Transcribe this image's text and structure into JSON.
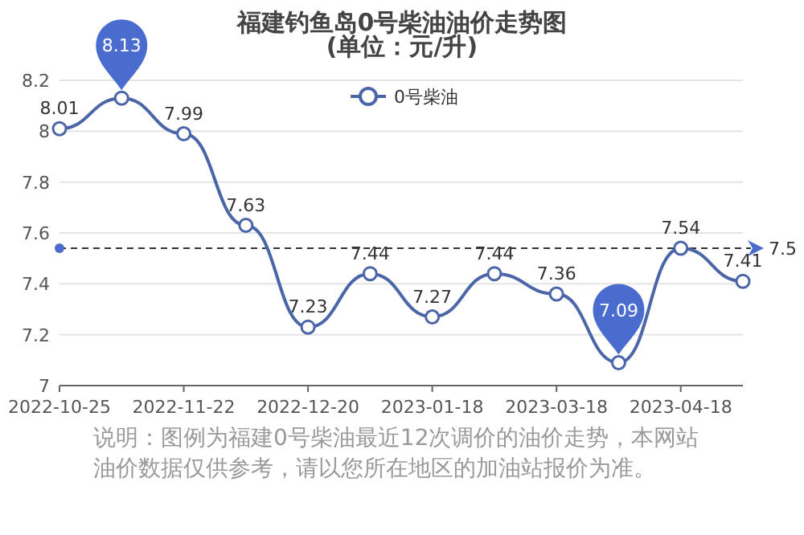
{
  "chart_data": {
    "type": "line",
    "title": "福建钓鱼岛0号柴油油价走势图",
    "subtitle": "(单位：元/升)",
    "categories": [
      "2022-10-25",
      null,
      "2022-11-22",
      null,
      "2022-12-20",
      null,
      "2023-01-18",
      null,
      "2023-03-18",
      null,
      "2023-04-18",
      null
    ],
    "series": [
      {
        "name": "0号柴油",
        "color": "#4a65a8",
        "values": [
          8.01,
          8.13,
          7.99,
          7.63,
          7.23,
          7.44,
          7.27,
          7.44,
          7.36,
          7.09,
          7.54,
          7.41
        ],
        "value_labels": [
          "8.01",
          null,
          "7.99",
          "7.63",
          "7.23",
          "7.44",
          "7.27",
          "7.44",
          "7.36",
          null,
          "7.54",
          "7.41"
        ]
      }
    ],
    "ylim": [
      7,
      8.2
    ],
    "yticks": [
      7,
      7.2,
      7.4,
      7.6,
      7.8,
      8,
      8.2
    ],
    "grid": "y",
    "legend": "top",
    "marker": "circle",
    "line_style": "solid",
    "ref_lines": [
      {
        "axis": "y",
        "value": 7.54,
        "label": "7.5",
        "color": "#333333",
        "line_style": "dashed"
      }
    ],
    "annotations": [
      {
        "text": "8.13",
        "y": 8.13
      },
      {
        "text": "7.09",
        "y": 7.09
      },
      "说明：图例为福建0号柴油最近12次调价的油价走势，本网站油价数据仅供参考，请以您所在地区的加油站报价为准。"
    ]
  }
}
